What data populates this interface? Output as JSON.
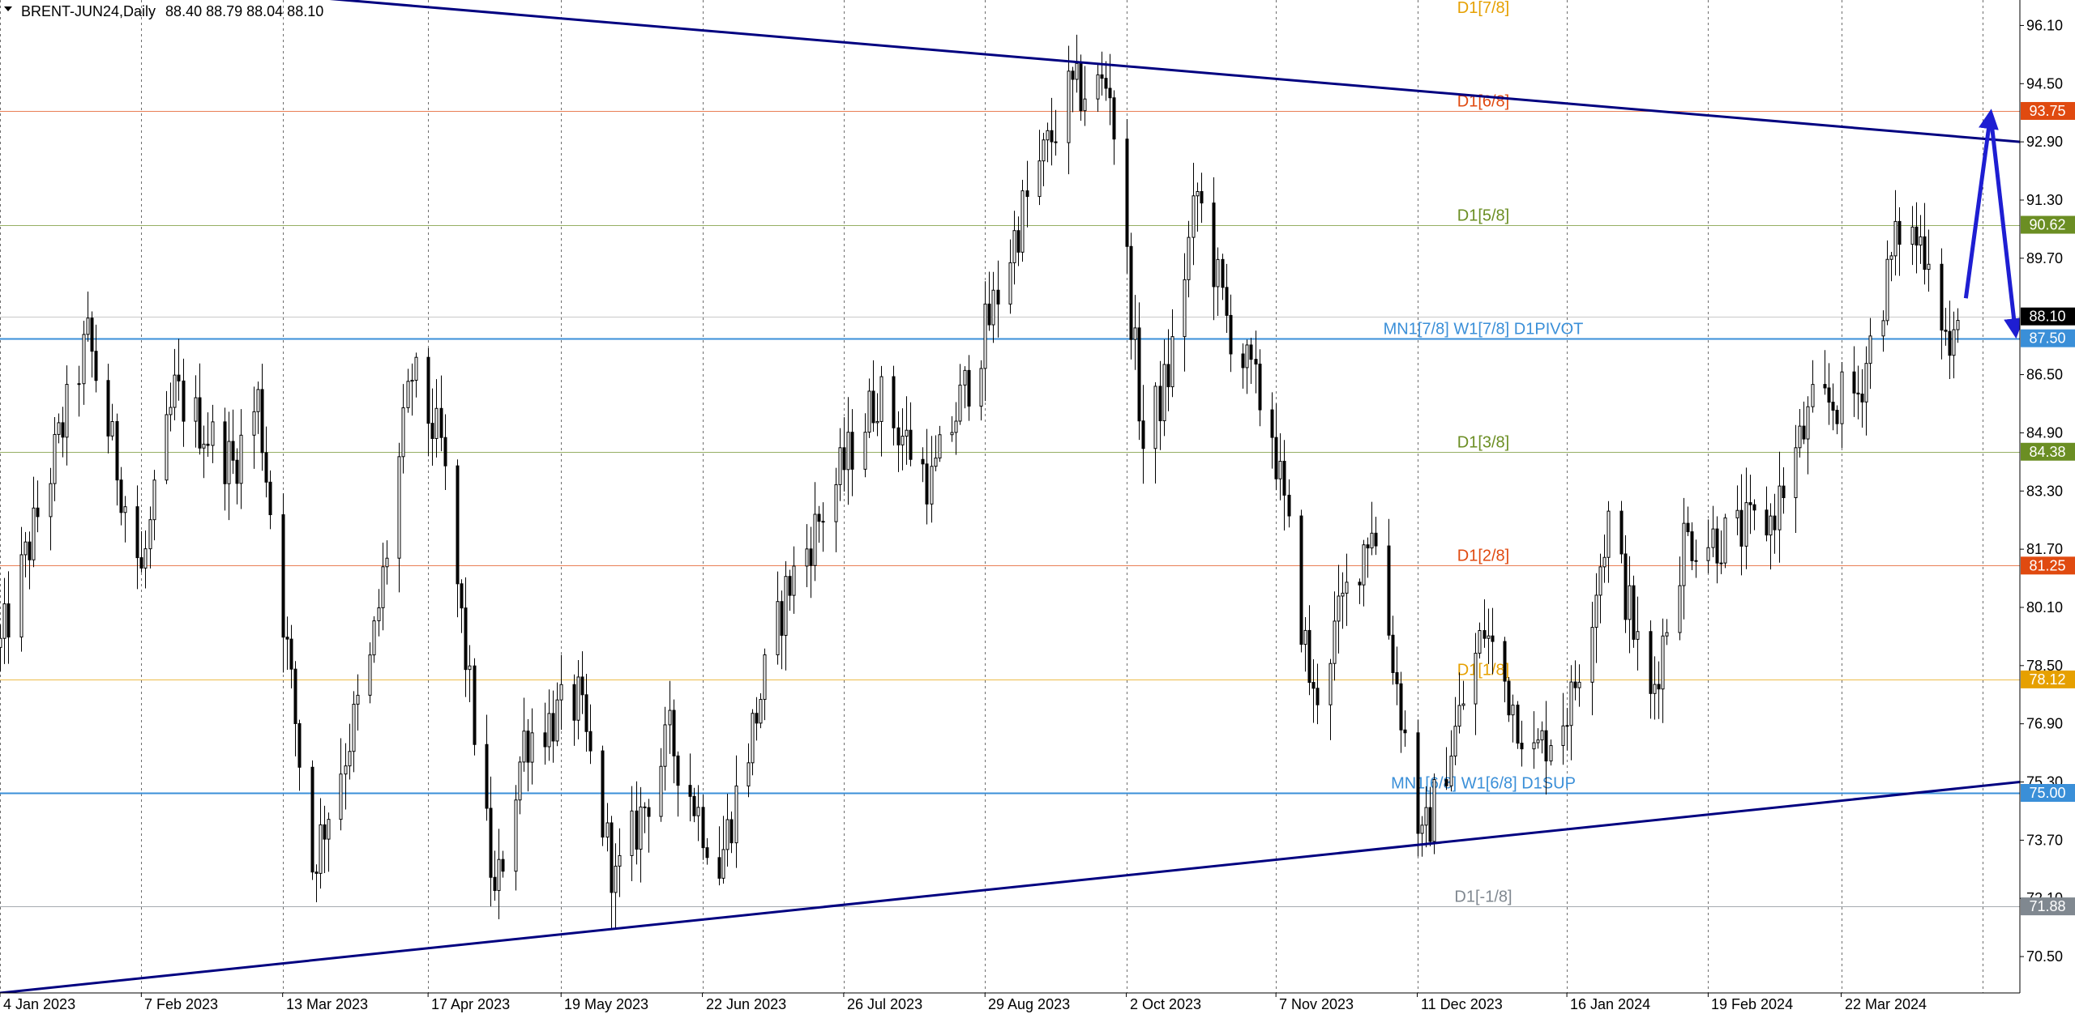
{
  "header": {
    "symbol_label": "BRENT-JUN24,Daily",
    "ohlc_label": "88.40 88.79 88.04 88.10"
  },
  "colors": {
    "background": "#ffffff",
    "grid": "#6e6e6e",
    "trendline": "#000080",
    "forecast_arrow": "#1e1ed2",
    "candle": "#000000"
  },
  "chart_data": {
    "type": "candlestick",
    "title": "BRENT-JUN24,Daily",
    "ohlc_last": {
      "open": 88.4,
      "high": 88.79,
      "low": 88.04,
      "close": 88.1
    },
    "ylim": [
      69.5,
      96.8
    ],
    "y_ticks": [
      "96.10",
      "94.50",
      "92.90",
      "91.30",
      "89.70",
      "86.50",
      "84.90",
      "83.30",
      "81.70",
      "80.10",
      "78.50",
      "76.90",
      "75.30",
      "73.70",
      "72.10",
      "70.50"
    ],
    "x_range": [
      "2023-01-04",
      "2024-05-04"
    ],
    "x_ticks": [
      {
        "date": "2023-01-04",
        "label": "4 Jan 2023"
      },
      {
        "date": "2023-02-07",
        "label": "7 Feb 2023"
      },
      {
        "date": "2023-03-13",
        "label": "13 Mar 2023"
      },
      {
        "date": "2023-04-17",
        "label": "17 Apr 2023"
      },
      {
        "date": "2023-05-19",
        "label": "19 May 2023"
      },
      {
        "date": "2023-06-22",
        "label": "22 Jun 2023"
      },
      {
        "date": "2023-07-26",
        "label": "26 Jul 2023"
      },
      {
        "date": "2023-08-29",
        "label": "29 Aug 2023"
      },
      {
        "date": "2023-10-02",
        "label": "2 Oct 2023"
      },
      {
        "date": "2023-11-07",
        "label": "7 Nov 2023"
      },
      {
        "date": "2023-12-11",
        "label": "11 Dec 2023"
      },
      {
        "date": "2024-01-16",
        "label": "16 Jan 2024"
      },
      {
        "date": "2024-02-19",
        "label": "19 Feb 2024"
      },
      {
        "date": "2024-03-22",
        "label": "22 Mar 2024"
      }
    ],
    "grid_dates": [
      "2023-01-04",
      "2023-02-07",
      "2023-03-13",
      "2023-04-17",
      "2023-05-19",
      "2023-06-22",
      "2023-07-26",
      "2023-08-29",
      "2023-10-02",
      "2023-11-07",
      "2023-12-11",
      "2024-01-16",
      "2024-02-19",
      "2024-03-22",
      "2024-04-25"
    ],
    "levels": [
      {
        "label": "D1[7/8]",
        "price": 96.88,
        "color": "#e6a000",
        "badge": ""
      },
      {
        "label": "D1[6/8]",
        "price": 93.75,
        "color": "#e04a10",
        "badge": "93.75"
      },
      {
        "label": "D1[5/8]",
        "price": 90.62,
        "color": "#6b8e23",
        "badge": "90.62"
      },
      {
        "label": "MN1[7/8] W1[7/8] D1PIVOT",
        "price": 87.5,
        "color": "#3a8fd8",
        "badge": "87.50"
      },
      {
        "label": "D1[3/8]",
        "price": 84.38,
        "color": "#6b8e23",
        "badge": "84.38"
      },
      {
        "label": "D1[2/8]",
        "price": 81.25,
        "color": "#e04a10",
        "badge": "81.25"
      },
      {
        "label": "D1[1/8]",
        "price": 78.12,
        "color": "#e6a000",
        "badge": "78.12"
      },
      {
        "label": "MN1[6/8] W1[6/8] D1SUP",
        "price": 75.0,
        "color": "#3a8fd8",
        "badge": "75.00"
      },
      {
        "label": "D1[-1/8]",
        "price": 71.88,
        "color": "#808890",
        "badge": "71.88"
      }
    ],
    "current_price": {
      "value": 88.1,
      "badge": "88.10",
      "color": "#000000"
    },
    "trendlines": [
      {
        "name": "upper-resistance",
        "from": {
          "date": "2023-01-04",
          "price": 97.6
        },
        "to": {
          "date": "2024-05-04",
          "price": 92.9
        }
      },
      {
        "name": "lower-support",
        "from": {
          "date": "2023-01-04",
          "price": 69.5
        },
        "to": {
          "date": "2024-05-04",
          "price": 75.3
        }
      }
    ],
    "forecast_arrows": [
      {
        "from": {
          "date": "2024-04-21",
          "price": 88.6
        },
        "to": {
          "date": "2024-04-27",
          "price": 93.7
        }
      },
      {
        "from": {
          "date": "2024-04-27",
          "price": 93.6
        },
        "to": {
          "date": "2024-05-03",
          "price": 87.6
        }
      }
    ],
    "anchors": [
      {
        "date": "2023-01-04",
        "price": 79.0
      },
      {
        "date": "2023-01-25",
        "price": 87.5
      },
      {
        "date": "2023-02-07",
        "price": 81.0
      },
      {
        "date": "2023-02-15",
        "price": 86.0
      },
      {
        "date": "2023-03-01",
        "price": 84.0
      },
      {
        "date": "2023-03-07",
        "price": 85.8
      },
      {
        "date": "2023-03-20",
        "price": 73.0
      },
      {
        "date": "2023-04-03",
        "price": 78.5
      },
      {
        "date": "2023-04-13",
        "price": 86.5
      },
      {
        "date": "2023-04-20",
        "price": 84.5
      },
      {
        "date": "2023-05-03",
        "price": 72.0
      },
      {
        "date": "2023-05-10",
        "price": 76.5
      },
      {
        "date": "2023-05-23",
        "price": 77.5
      },
      {
        "date": "2023-06-01",
        "price": 72.5
      },
      {
        "date": "2023-06-14",
        "price": 76.5
      },
      {
        "date": "2023-06-26",
        "price": 73.0
      },
      {
        "date": "2023-07-12",
        "price": 80.5
      },
      {
        "date": "2023-07-24",
        "price": 83.5
      },
      {
        "date": "2023-08-03",
        "price": 86.0
      },
      {
        "date": "2023-08-16",
        "price": 83.5
      },
      {
        "date": "2023-08-30",
        "price": 88.0
      },
      {
        "date": "2023-09-07",
        "price": 91.0
      },
      {
        "date": "2023-09-18",
        "price": 94.2
      },
      {
        "date": "2023-09-28",
        "price": 94.5
      },
      {
        "date": "2023-10-06",
        "price": 84.5
      },
      {
        "date": "2023-10-12",
        "price": 86.5
      },
      {
        "date": "2023-10-19",
        "price": 91.5
      },
      {
        "date": "2023-10-26",
        "price": 88.0
      },
      {
        "date": "2023-11-06",
        "price": 85.0
      },
      {
        "date": "2023-11-16",
        "price": 77.5
      },
      {
        "date": "2023-11-24",
        "price": 80.5
      },
      {
        "date": "2023-11-30",
        "price": 82.5
      },
      {
        "date": "2023-12-12",
        "price": 73.5
      },
      {
        "date": "2023-12-27",
        "price": 79.5
      },
      {
        "date": "2024-01-08",
        "price": 76.0
      },
      {
        "date": "2024-01-17",
        "price": 77.5
      },
      {
        "date": "2024-01-26",
        "price": 82.5
      },
      {
        "date": "2024-02-05",
        "price": 77.5
      },
      {
        "date": "2024-02-13",
        "price": 82.0
      },
      {
        "date": "2024-02-23",
        "price": 82.0
      },
      {
        "date": "2024-03-05",
        "price": 82.5
      },
      {
        "date": "2024-03-15",
        "price": 85.5
      },
      {
        "date": "2024-03-26",
        "price": 86.0
      },
      {
        "date": "2024-04-05",
        "price": 90.5
      },
      {
        "date": "2024-04-12",
        "price": 90.0
      },
      {
        "date": "2024-04-17",
        "price": 87.0
      },
      {
        "date": "2024-04-21",
        "price": 88.1
      }
    ]
  }
}
